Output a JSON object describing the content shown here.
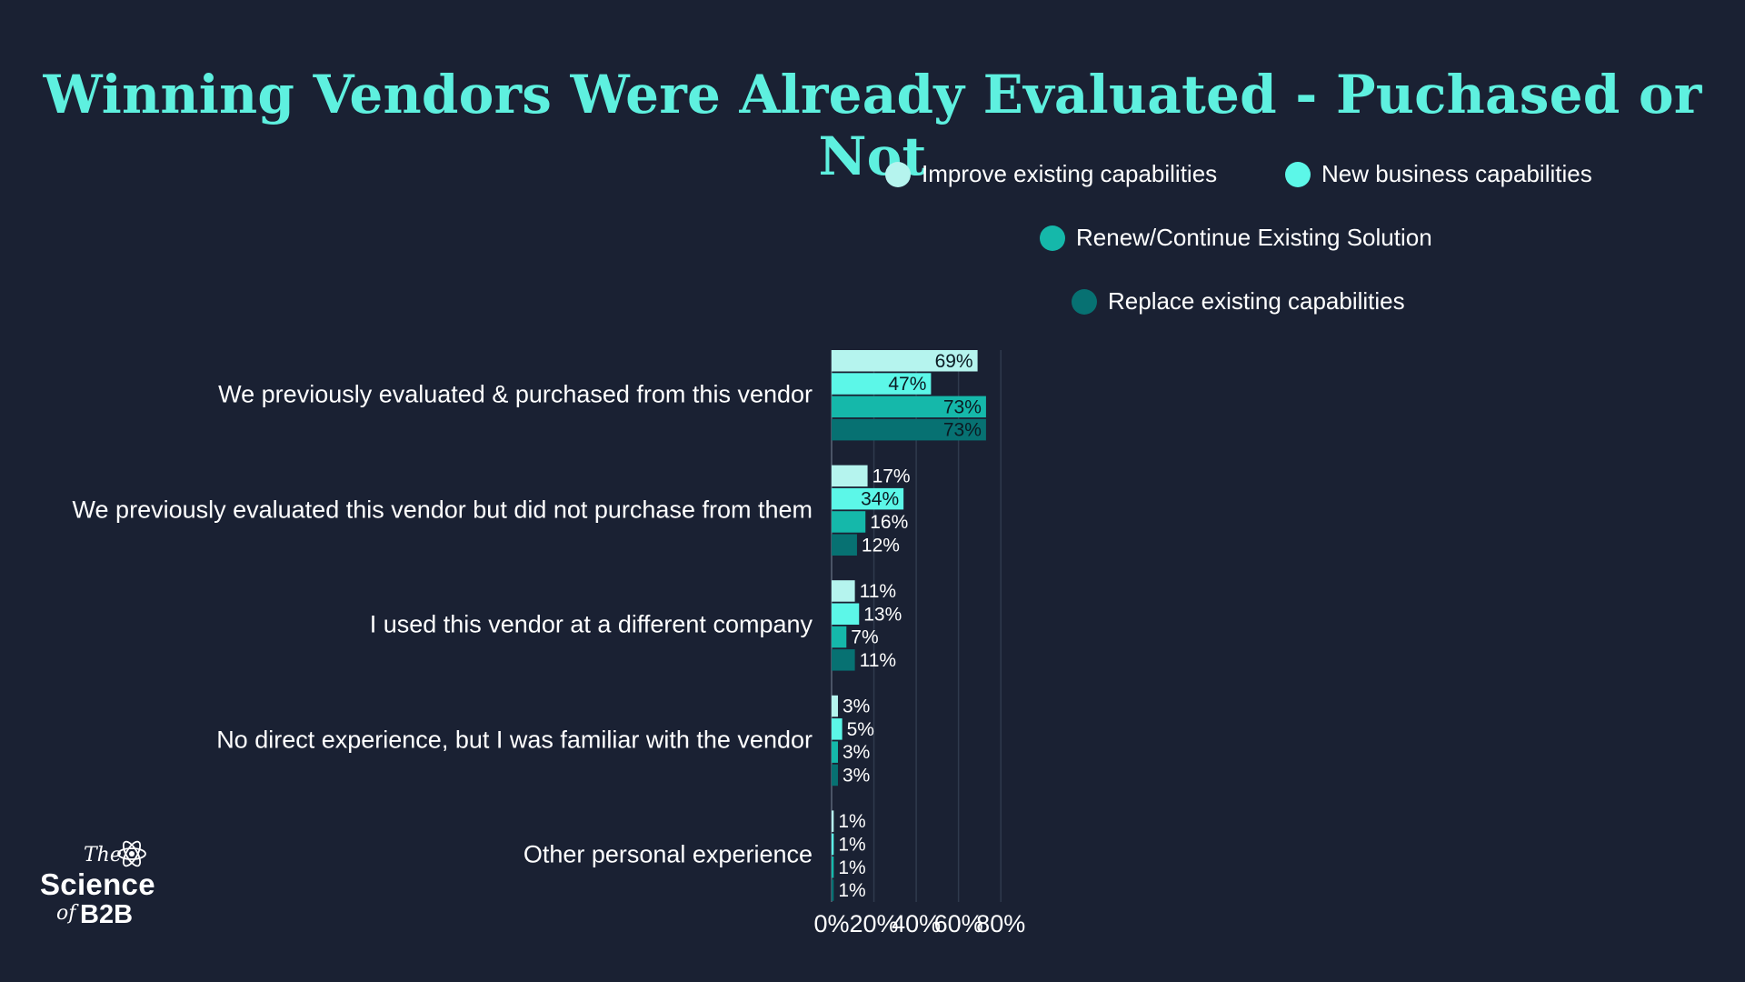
{
  "title": "Winning Vendors Were Already Evaluated - Puchased or Not",
  "colors": {
    "background": "#1a2133",
    "title": "#5ef0df",
    "series": [
      "#b5f4ee",
      "#5cf7e8",
      "#15b8aa",
      "#077172"
    ],
    "grid": "#2f3a4d",
    "text": "#ffffff"
  },
  "logo": {
    "the": "The",
    "science": "Science",
    "of": "of",
    "b2b": "B2B",
    "icon": "atom-icon"
  },
  "chart_data": {
    "type": "bar",
    "orientation": "horizontal",
    "categories": [
      "We previously evaluated & purchased from this vendor",
      "We previously evaluated this vendor but did not purchase from them",
      "I used this vendor at a different company",
      "No direct experience, but I was familiar with the vendor",
      "Other personal experience"
    ],
    "series": [
      {
        "name": "Improve existing capabilities",
        "values": [
          69,
          17,
          11,
          3,
          1
        ]
      },
      {
        "name": "New business capabilities",
        "values": [
          47,
          34,
          13,
          5,
          1
        ]
      },
      {
        "name": "Renew/Continue Existing Solution",
        "values": [
          73,
          16,
          7,
          3,
          1
        ]
      },
      {
        "name": "Replace existing capabilities",
        "values": [
          73,
          12,
          11,
          3,
          1
        ]
      }
    ],
    "value_suffix": "%",
    "xlim": [
      0,
      80
    ],
    "xticks": [
      "0%",
      "20%",
      "40%",
      "60%",
      "80%"
    ],
    "grid": true,
    "legend_position": "top-right"
  }
}
